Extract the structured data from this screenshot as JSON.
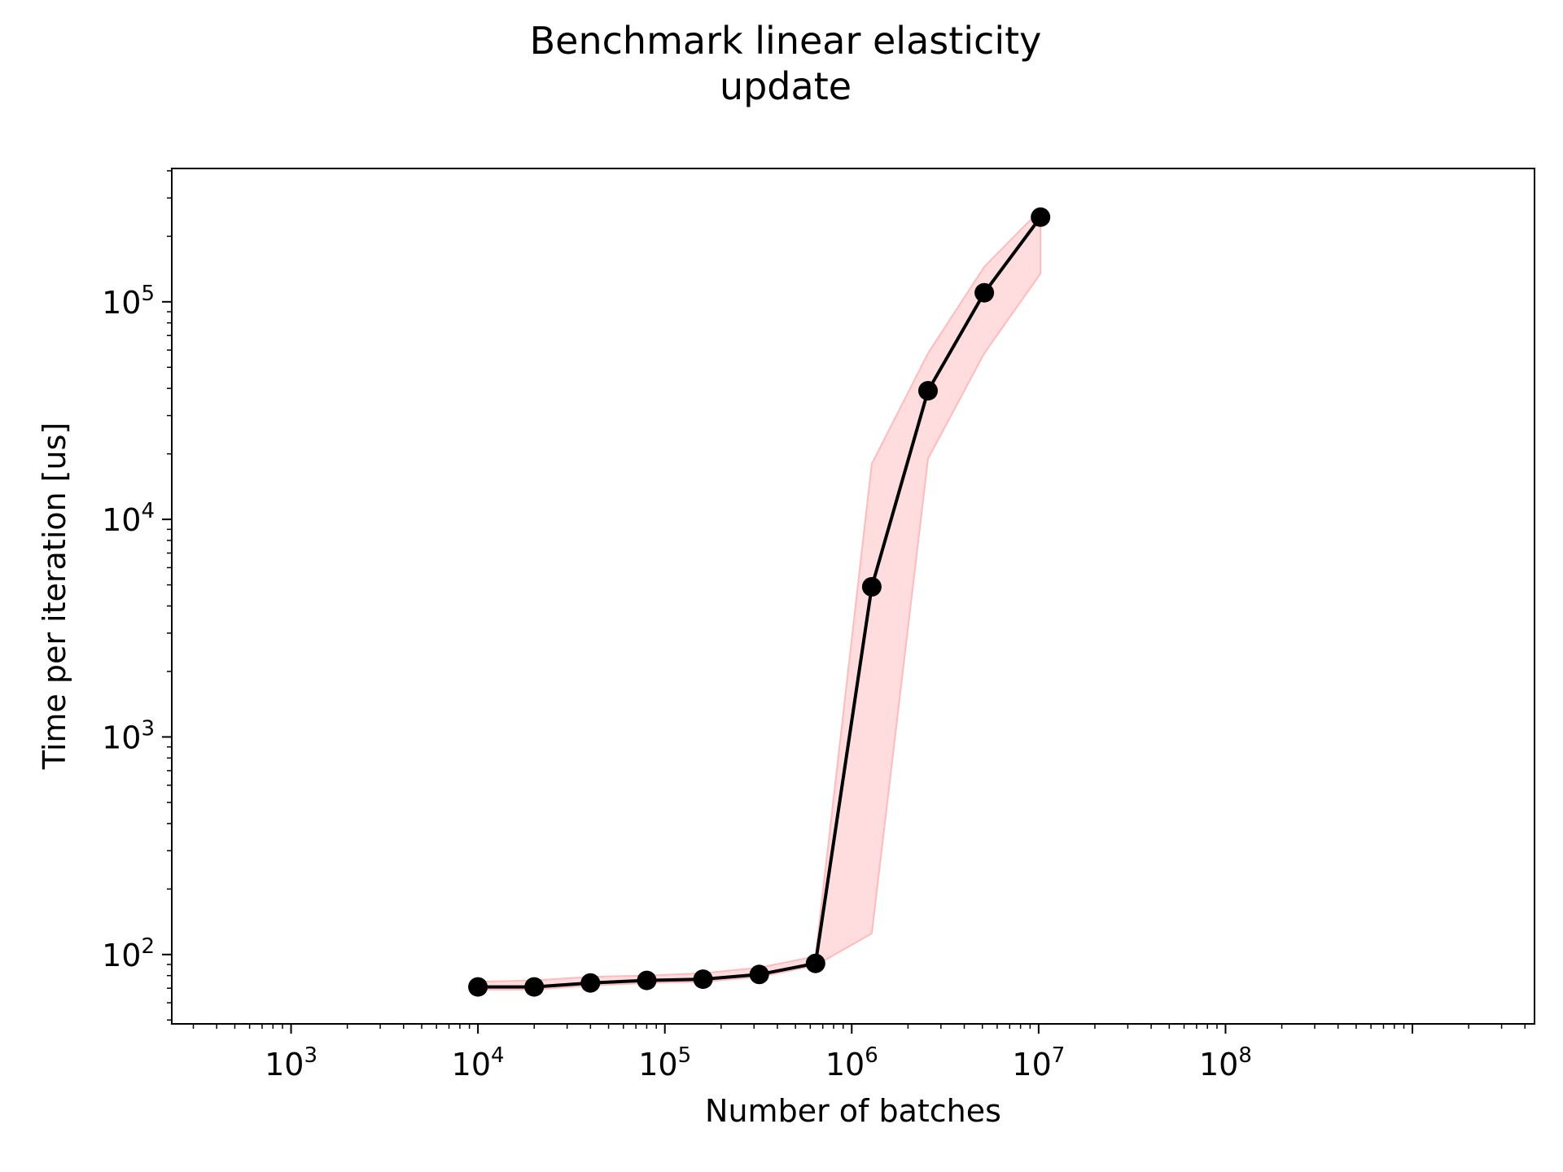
{
  "chart_data": {
    "type": "line",
    "title": "Benchmark linear elasticity",
    "subtitle": "update",
    "xlabel": "Number of batches",
    "ylabel": "Time per iteration [us]",
    "xscale": "log",
    "yscale": "log",
    "xlim": [
      230,
      4500000000
    ],
    "ylim": [
      48,
      410000
    ],
    "grid": false,
    "x_ticks": [
      {
        "value": 1000,
        "base": "10",
        "exp": "3"
      },
      {
        "value": 10000,
        "base": "10",
        "exp": "4"
      },
      {
        "value": 100000,
        "base": "10",
        "exp": "5"
      },
      {
        "value": 1000000,
        "base": "10",
        "exp": "6"
      },
      {
        "value": 10000000,
        "base": "10",
        "exp": "7"
      },
      {
        "value": 100000000,
        "base": "10",
        "exp": "8"
      }
    ],
    "y_ticks": [
      {
        "value": 100,
        "base": "10",
        "exp": "2"
      },
      {
        "value": 1000,
        "base": "10",
        "exp": "3"
      },
      {
        "value": 10000,
        "base": "10",
        "exp": "4"
      },
      {
        "value": 100000,
        "base": "10",
        "exp": "5"
      }
    ],
    "series": [
      {
        "color": "#000000",
        "marker": "circle",
        "points": [
          {
            "x": 10000,
            "y": 71
          },
          {
            "x": 20000,
            "y": 71
          },
          {
            "x": 40000,
            "y": 74
          },
          {
            "x": 80000,
            "y": 76
          },
          {
            "x": 160000,
            "y": 77
          },
          {
            "x": 320000,
            "y": 81
          },
          {
            "x": 640000,
            "y": 91
          },
          {
            "x": 1280000,
            "y": 4900
          },
          {
            "x": 2560000,
            "y": 39000
          },
          {
            "x": 5120000,
            "y": 110000
          },
          {
            "x": 10240000,
            "y": 245000
          }
        ]
      }
    ],
    "band": {
      "color": "#ffdddf",
      "edge_color": "#ffbbbb",
      "lower": [
        69,
        69,
        72,
        74,
        75,
        79,
        89,
        125,
        19000,
        58000,
        135000
      ],
      "upper": [
        75,
        76,
        79,
        80,
        82,
        87,
        98,
        18000,
        58000,
        145000,
        265000
      ]
    }
  }
}
